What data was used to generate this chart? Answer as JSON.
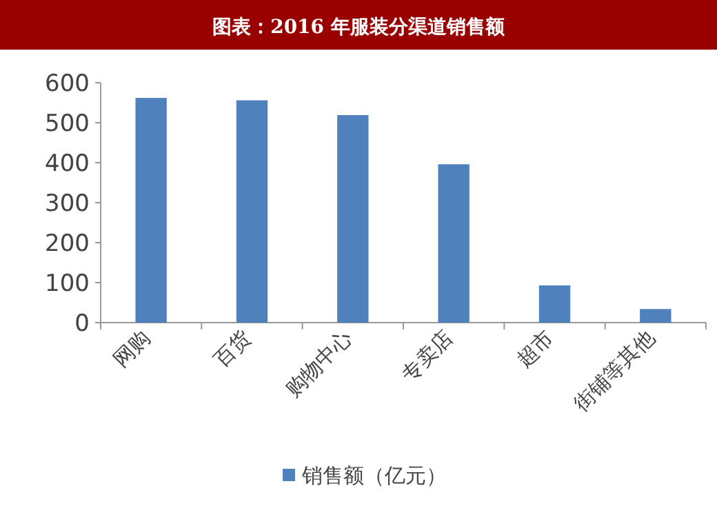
{
  "chart_data": {
    "type": "bar",
    "title": "图表：2016 年服装分渠道销售额",
    "categories": [
      "网购",
      "百货",
      "购物中心",
      "专卖店",
      "超市",
      "街铺等其他"
    ],
    "series": [
      {
        "name": "销售额（亿元）",
        "color": "#4f81bd",
        "values": [
          562,
          556,
          519,
          396,
          93,
          34
        ]
      }
    ],
    "ylim": [
      0,
      600
    ],
    "yticks": [
      0,
      100,
      200,
      300,
      400,
      500,
      600
    ],
    "grid": false,
    "legend": "bottom"
  }
}
